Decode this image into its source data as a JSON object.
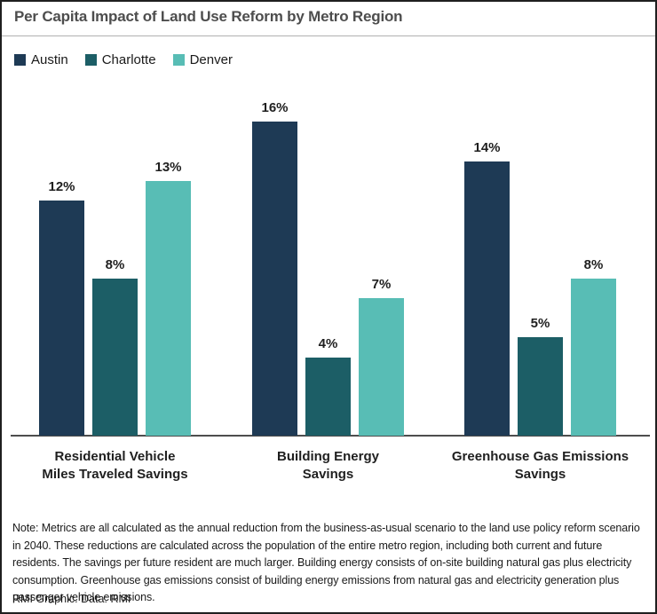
{
  "header": {
    "title": "Per Capita Impact of Land Use Reform by Metro Region"
  },
  "chart_data": {
    "type": "bar",
    "title": "Per Capita Impact of Land Use Reform by Metro Region",
    "categories": [
      "Residential Vehicle\nMiles Traveled Savings",
      "Building Energy\nSavings",
      "Greenhouse Gas Emissions\nSavings"
    ],
    "series": [
      {
        "name": "Austin",
        "color": "#1e3a55",
        "values": [
          12,
          16,
          14
        ]
      },
      {
        "name": "Charlotte",
        "color": "#1c5e66",
        "values": [
          8,
          4,
          5
        ]
      },
      {
        "name": "Denver",
        "color": "#58bdb5",
        "values": [
          13,
          7,
          8
        ]
      }
    ],
    "value_suffix": "%",
    "value_labels_shown": true,
    "ylim": [
      0,
      16
    ],
    "grid": false,
    "y_axis_shown": false,
    "legend_position": "top-left",
    "axis_line_color": "#4d4d4d"
  },
  "footer": {
    "note": "Note: Metrics are all calculated as the annual reduction from the business-as-usual scenario to the land use policy reform scenario in 2040. These reductions are calculated across the population of the entire metro region, including both current and future residents. The savings per future resident are much larger. Building energy consists of on-site building natural gas plus electricity consumption. Greenhouse gas emissions consist of building energy emissions from natural gas and electricity generation plus passenger vehicle emissions.",
    "credit": "RMI Graphic. Data: RMI"
  }
}
